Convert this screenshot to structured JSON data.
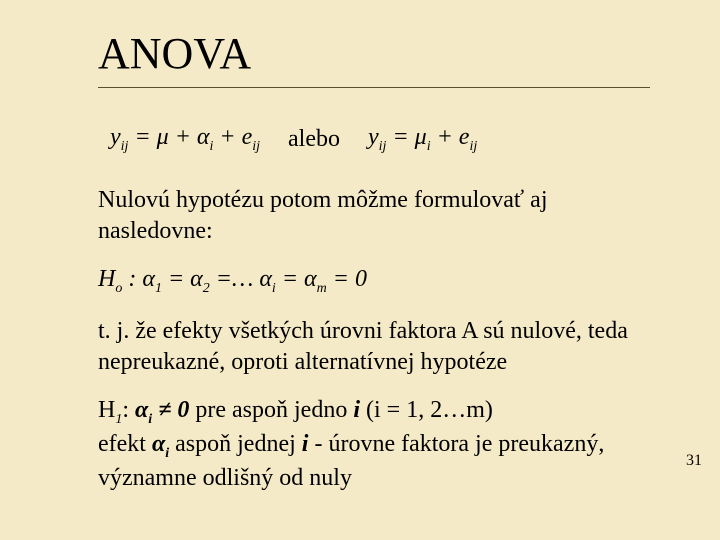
{
  "title": "ANOVA",
  "equation": {
    "lhs": "y",
    "lhs_sub": "ij",
    "form1_mu": "μ",
    "form1_plus1": " + ",
    "form1_alpha": "α",
    "form1_alpha_sub": "i",
    "form1_plus2": " + ",
    "form1_e": "e",
    "form1_e_sub": "ij",
    "word_or": "alebo",
    "form2_mu": "μ",
    "form2_mu_sub": "i",
    "form2_plus": " + ",
    "form2_e": "e",
    "form2_e_sub": "ij"
  },
  "intro": "Nulovú hypotézu potom môžme formulovať aj nasledovne:",
  "h0": {
    "label": "H",
    "label_sub": "o",
    "colon": " : ",
    "a1": "α",
    "a1_sub": "1",
    "eq1": " = ",
    "a2": "α",
    "a2_sub": "2",
    "eq2": " =…  ",
    "ai": "α",
    "ai_sub": "i",
    "eq3": " = ",
    "am": "α",
    "am_sub": "m",
    "eq4": " = 0"
  },
  "explain_h0_1": "t. j. že efekty všetkých úrovni faktora A sú nulové, teda",
  "explain_h0_2": "nepreukazné, oproti alternatívnej hypotéze",
  "h1": {
    "label": "H",
    "label_sub": "1",
    "colon": ": ",
    "ai": "α",
    "ai_sub": "i",
    "neq": " ≠ ",
    "zero": "0",
    "tail": "  pre aspoň jedno ",
    "ivar": "i",
    "tail2": "  (i = 1, 2…m)"
  },
  "explain_h1_1a": "efekt ",
  "explain_h1_1_ai": "α",
  "explain_h1_1_ai_sub": "i",
  "explain_h1_1b": " aspoň jednej ",
  "explain_h1_1_ivar": "i",
  "explain_h1_1c": " - úrovne faktora je preukazný,",
  "explain_h1_2": "významne odlišný od nuly",
  "pagenum": "31"
}
